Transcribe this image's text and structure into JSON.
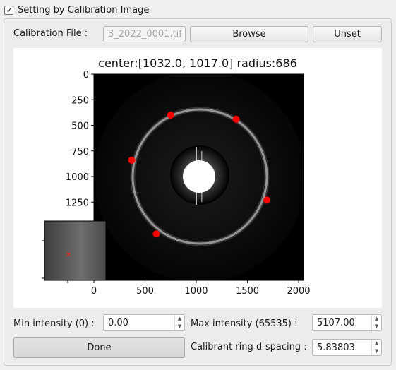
{
  "group": {
    "title": "Setting by Calibration Image",
    "checked": true
  },
  "file": {
    "label": "Calibration File :",
    "value": "3_2022_0001.tif",
    "browse_label": "Browse",
    "unset_label": "Unset"
  },
  "plot": {
    "title": "center:[1032.0, 1017.0] radius:686",
    "y_ticks": [
      "0",
      "250",
      "500",
      "750",
      "1000",
      "1250"
    ],
    "x_ticks": [
      "0",
      "500",
      "1000",
      "1500",
      "2000"
    ],
    "ring_points": [
      {
        "x": 750,
        "y": 400
      },
      {
        "x": 1390,
        "y": 440
      },
      {
        "x": 370,
        "y": 840
      },
      {
        "x": 1690,
        "y": 1230
      },
      {
        "x": 610,
        "y": 1560
      }
    ],
    "marker_color": "#ff0000"
  },
  "min_intensity": {
    "label": "Min intensity (0) :",
    "value": "0.00"
  },
  "max_intensity": {
    "label": "Max intensity (65535) :",
    "value": "5107.00"
  },
  "done_label": "Done",
  "d_spacing": {
    "label": "Calibrant ring d-spacing :",
    "value": "5.83803"
  }
}
